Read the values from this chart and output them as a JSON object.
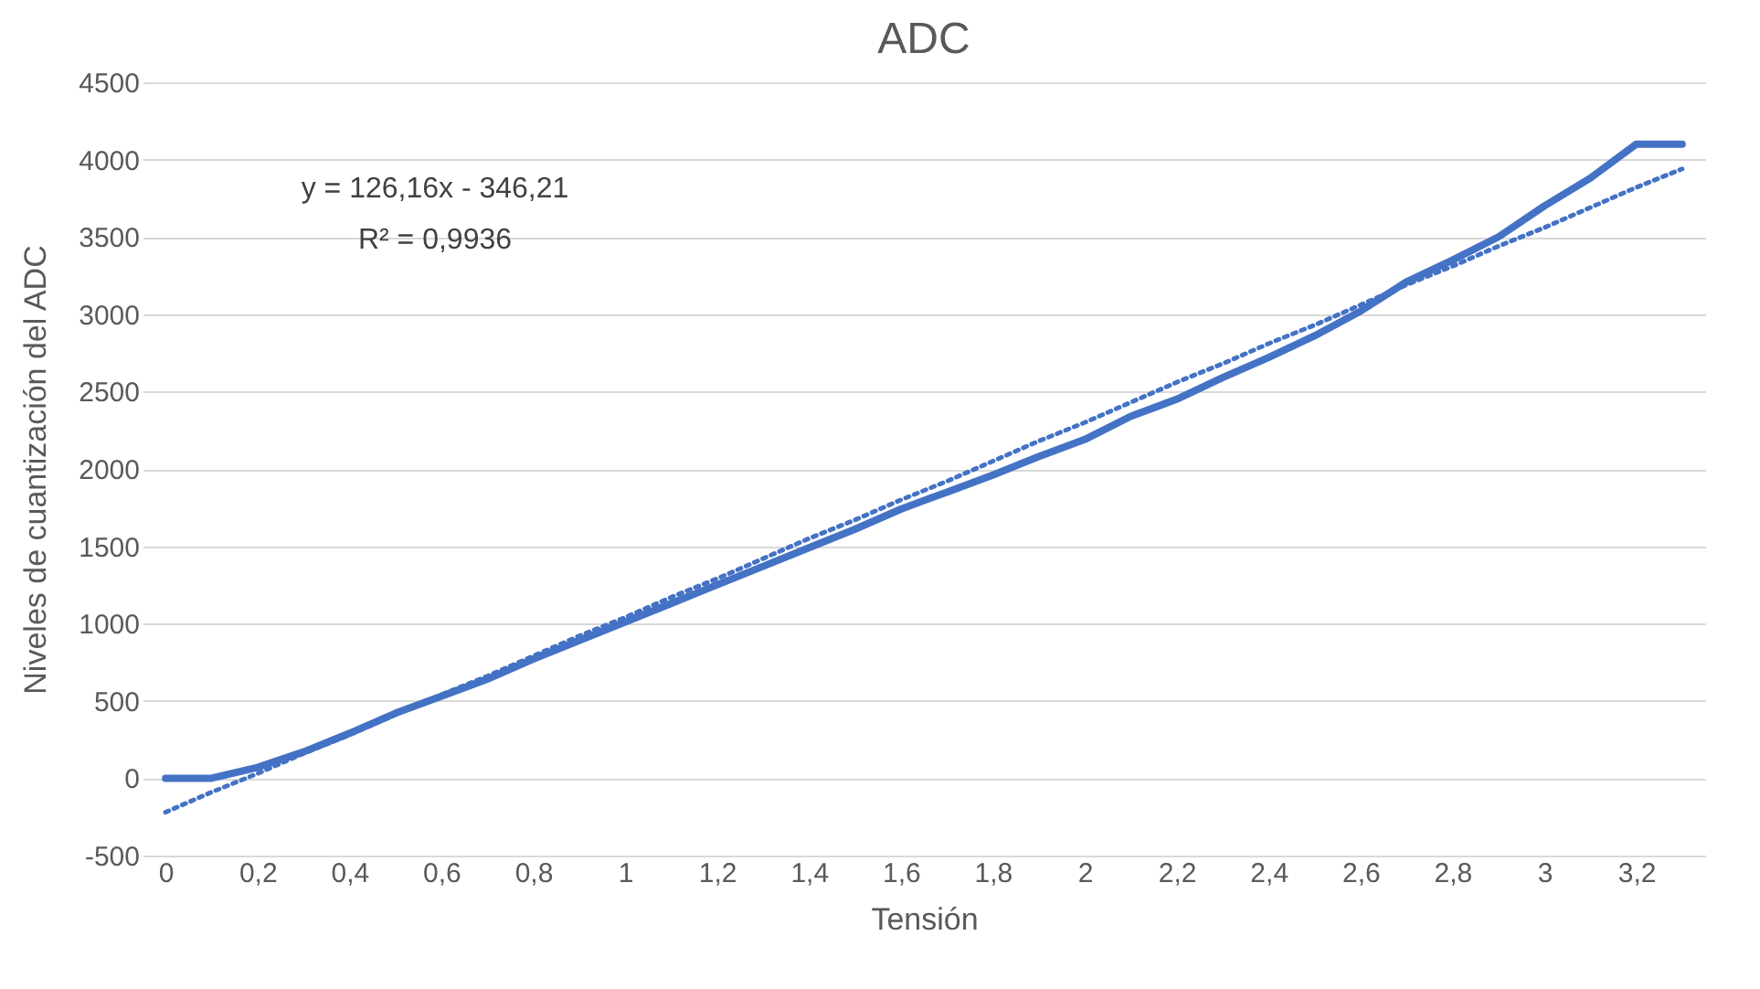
{
  "chart_data": {
    "type": "line",
    "title": "ADC",
    "xlabel": "Tensión",
    "ylabel": "Niveles de cuantización del ADC",
    "categories": [
      "0",
      null,
      "0,2",
      null,
      "0,4",
      null,
      "0,6",
      null,
      "0,8",
      null,
      "1",
      null,
      "1,2",
      null,
      "1,4",
      null,
      "1,6",
      null,
      "1,8",
      null,
      "2",
      null,
      "2,2",
      null,
      "2,4",
      null,
      "2,6",
      null,
      "2,8",
      null,
      "3",
      null,
      "3,2",
      null
    ],
    "series": [
      {
        "color": "#4472c4",
        "line_style": "solid",
        "values": [
          0,
          0,
          70,
          170,
          290,
          420,
          530,
          640,
          770,
          890,
          1010,
          1130,
          1250,
          1370,
          1490,
          1610,
          1740,
          1850,
          1960,
          2080,
          2190,
          2340,
          2450,
          2590,
          2720,
          2860,
          3020,
          3210,
          3350,
          3500,
          3700,
          3880,
          4100,
          4100
        ]
      },
      {
        "type": "line",
        "color": "#4472c4",
        "line_style": "dotted",
        "values": [
          -220,
          -90,
          30,
          160,
          280,
          410,
          540,
          660,
          790,
          920,
          1040,
          1170,
          1290,
          1420,
          1550,
          1670,
          1800,
          1920,
          2050,
          2180,
          2300,
          2430,
          2560,
          2680,
          2810,
          2930,
          3060,
          3190,
          3310,
          3440,
          3560,
          3690,
          3820,
          3940
        ]
      }
    ],
    "annotations": [
      "y = 126,16x - 346,21",
      "R² = 0,9936"
    ],
    "ylim": [
      -500,
      4500
    ],
    "yticks": [
      -500,
      0,
      500,
      1000,
      1500,
      2000,
      2500,
      3000,
      3500,
      4000,
      4500
    ],
    "grid": "y",
    "legend": false,
    "marker": "none"
  }
}
